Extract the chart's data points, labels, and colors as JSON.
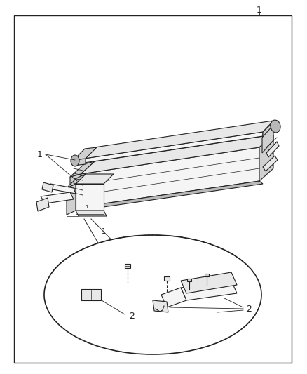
{
  "bg_color": "#ffffff",
  "border_color": "#222222",
  "line_color": "#222222",
  "fill_light": "#f5f5f5",
  "fill_mid": "#e8e8e8",
  "fill_dark": "#d0d0d0",
  "fill_darker": "#b8b8b8",
  "fig_width": 4.38,
  "fig_height": 5.33,
  "dpi": 100,
  "label1_text": "1",
  "label2a_text": "2",
  "label2b_text": "2",
  "title_text": "1"
}
